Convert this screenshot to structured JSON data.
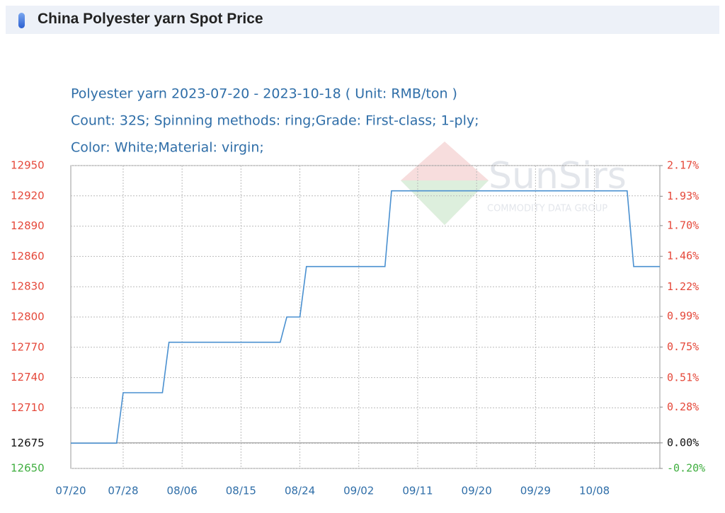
{
  "header": {
    "title": "China Polyester yarn Spot Price"
  },
  "chart_data": {
    "type": "line",
    "subtitle": [
      "Polyester yarn 2023-07-20 - 2023-10-18     ( Unit: RMB/ton )",
      "Count: 32S; Spinning methods: ring;Grade: First-class; 1-ply;",
      "Color: White;Material: virgin;"
    ],
    "watermark": {
      "name": "SunSirs",
      "tagline": "COMMODITY DATA GROUP"
    },
    "x": [
      "07/20",
      "07/27",
      "07/28",
      "08/03",
      "08/04",
      "08/21",
      "08/22",
      "08/24",
      "08/25",
      "09/06",
      "09/07",
      "10/13",
      "10/14",
      "10/18"
    ],
    "values": [
      12675,
      12675,
      12725,
      12725,
      12775,
      12775,
      12800,
      12800,
      12850,
      12850,
      12925,
      12925,
      12850,
      12850
    ],
    "color": "#4a90d0",
    "xlim": [
      "07/20",
      "10/18"
    ],
    "xticks": [
      "07/20",
      "07/28",
      "08/06",
      "08/15",
      "08/24",
      "09/02",
      "09/11",
      "09/20",
      "09/29",
      "10/08"
    ],
    "ylim": [
      12650,
      12950
    ],
    "yticks": [
      12650,
      12675,
      12710,
      12740,
      12770,
      12800,
      12830,
      12860,
      12890,
      12920,
      12950
    ],
    "y2lim": [
      -0.2,
      2.17
    ],
    "y2ticks": [
      {
        "value": -0.2,
        "label": "-0.20%"
      },
      {
        "value": 0,
        "label": "0.00%"
      },
      {
        "value": 0.28,
        "label": "0.28%"
      },
      {
        "value": 0.51,
        "label": "0.51%"
      },
      {
        "value": 0.75,
        "label": "0.75%"
      },
      {
        "value": 0.99,
        "label": "0.99%"
      },
      {
        "value": 1.22,
        "label": "1.22%"
      },
      {
        "value": 1.46,
        "label": "1.46%"
      },
      {
        "value": 1.7,
        "label": "1.70%"
      },
      {
        "value": 1.93,
        "label": "1.93%"
      },
      {
        "value": 2.17,
        "label": "2.17%"
      }
    ],
    "grid": true,
    "tick_colors": {
      "up": "#e5483a",
      "zero": "#111111",
      "down": "#3fae3f"
    }
  }
}
